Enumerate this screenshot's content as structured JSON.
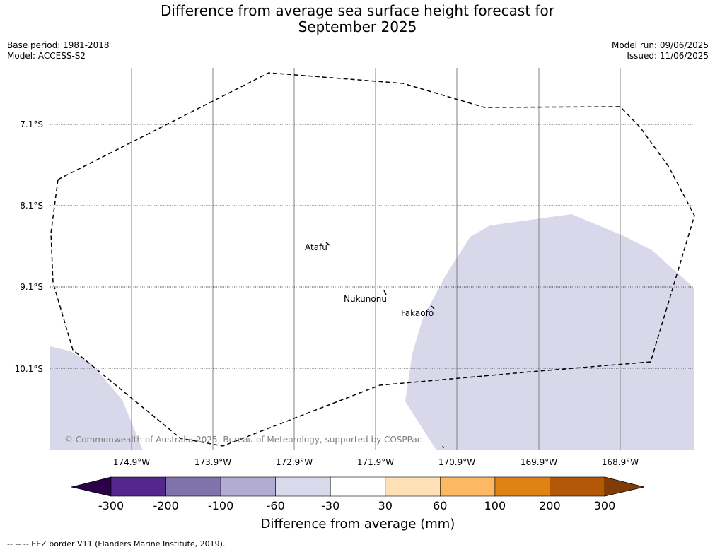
{
  "title": "Difference from average sea surface height forecast for September 2025",
  "title_lines": [
    "Difference from average sea surface height forecast for",
    "September 2025"
  ],
  "meta": {
    "base_period": "Base period: 1981-2018",
    "model": "Model: ACCESS-S2",
    "model_run": "Model run: 09/06/2025",
    "issued": "Issued: 11/06/2025"
  },
  "map": {
    "lat_labels": [
      "7.1°S",
      "8.1°S",
      "9.1°S",
      "10.1°S"
    ],
    "lon_labels": [
      "174.9°W",
      "173.9°W",
      "172.9°W",
      "171.9°W",
      "170.9°W",
      "169.9°W",
      "168.9°W"
    ],
    "places": [
      "Atafu",
      "Nukunonu",
      "Fakaofo"
    ],
    "copyright": "© Commonwealth of Australia 2025, Bureau of Meteorology, supported by COSPPac",
    "colors": {
      "anomaly_-60_-30": "#d8d8ea",
      "eez_line": "#000000",
      "graticule": "#808080"
    }
  },
  "colorbar": {
    "label": "Difference from average (mm)",
    "ticks": [
      "-300",
      "-200",
      "-100",
      "-60",
      "-30",
      "30",
      "60",
      "100",
      "200",
      "300"
    ],
    "colors": [
      "#54278f",
      "#8073ac",
      "#b2abd2",
      "#d8daeb",
      "#ffffff",
      "#fee0b6",
      "#fdb863",
      "#e08214",
      "#b35806"
    ],
    "under_color": "#2d004b",
    "over_color": "#7f3b08"
  },
  "footer": "--  --  -- EEZ border V11 (Flanders Marine Institute, 2019)."
}
